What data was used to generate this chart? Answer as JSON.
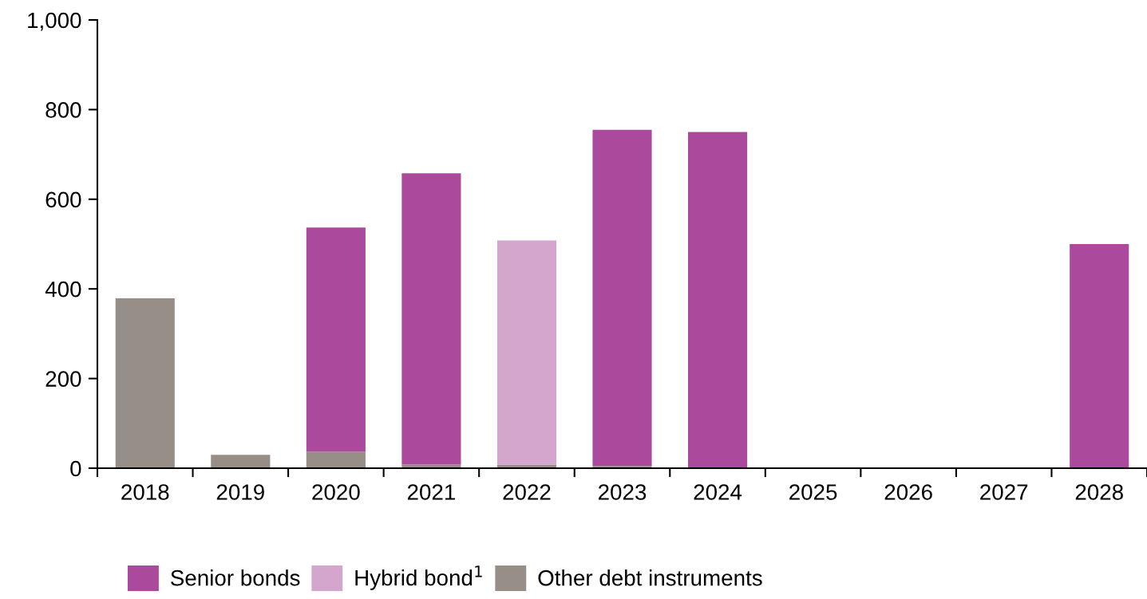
{
  "chart_data": {
    "type": "bar",
    "stacked": true,
    "categories": [
      "2018",
      "2019",
      "2020",
      "2021",
      "2022",
      "2023",
      "2024",
      "2025",
      "2026",
      "2027",
      "2028"
    ],
    "series": [
      {
        "name": "Other debt instruments",
        "color": "#968e87",
        "values": [
          379,
          30,
          37,
          8,
          8,
          5,
          null,
          null,
          null,
          null,
          null
        ]
      },
      {
        "name": "Hybrid bond$^{1}$",
        "color": "#d5a6cd",
        "values": [
          null,
          null,
          null,
          null,
          500,
          null,
          null,
          null,
          null,
          null,
          null
        ]
      },
      {
        "name": "Senior bonds",
        "color": "#ab4a9c",
        "values": [
          null,
          null,
          500,
          650,
          null,
          750,
          750,
          null,
          null,
          null,
          500
        ]
      }
    ],
    "ylim": [
      0,
      1000
    ],
    "yticks": [
      0,
      200,
      400,
      600,
      800,
      {
        "value": 1000,
        "label": "1,000"
      }
    ],
    "grid": false,
    "legend": "bottom"
  }
}
